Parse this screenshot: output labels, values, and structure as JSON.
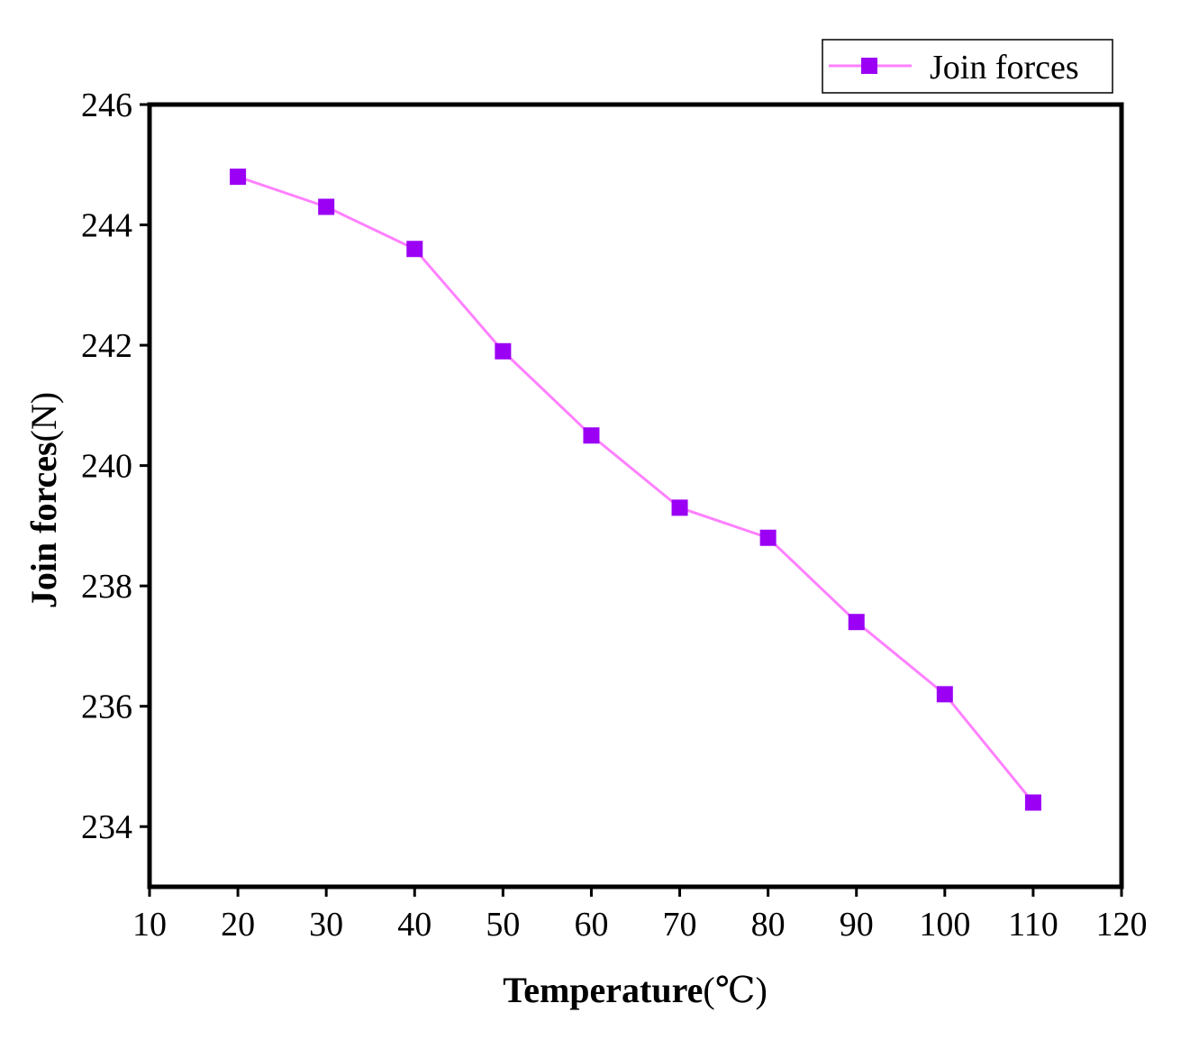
{
  "chart_data": {
    "type": "line",
    "title": "",
    "xlabel": "Temperature",
    "xlabel_unit": "(℃)",
    "ylabel": "Join forces",
    "ylabel_unit": "(N)",
    "xlim": [
      10,
      120
    ],
    "ylim": [
      233,
      246
    ],
    "x_ticks": [
      10,
      20,
      30,
      40,
      50,
      60,
      70,
      80,
      90,
      100,
      110,
      120
    ],
    "y_ticks": [
      234,
      236,
      238,
      240,
      242,
      244,
      246
    ],
    "grid": false,
    "legend_position": "top-right",
    "series": [
      {
        "name": "Join forces",
        "line_color": "#ff80ff",
        "marker_color": "#9b00f5",
        "marker": "square",
        "x": [
          20,
          30,
          40,
          50,
          60,
          70,
          80,
          90,
          100,
          110
        ],
        "y": [
          244.8,
          244.3,
          243.6,
          241.9,
          240.5,
          239.3,
          238.8,
          237.4,
          236.2,
          234.4
        ]
      }
    ]
  }
}
